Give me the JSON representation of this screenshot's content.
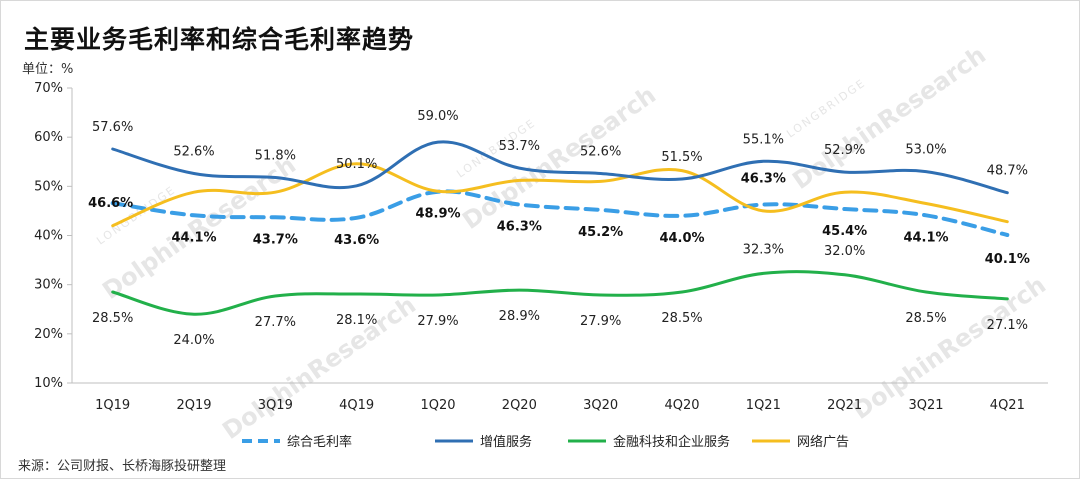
{
  "title": "主要业务毛利率和综合毛利率趋势",
  "unit": "单位：%",
  "source": "来源：公司财报、长桥海豚投研整理",
  "watermark": {
    "main": "DolphinResearch",
    "sub": "LONGBRIDGE"
  },
  "chart_data": {
    "type": "line",
    "categories": [
      "1Q19",
      "2Q19",
      "3Q19",
      "4Q19",
      "1Q20",
      "2Q20",
      "3Q20",
      "4Q20",
      "1Q21",
      "2Q21",
      "3Q21",
      "4Q21"
    ],
    "ylim": [
      10,
      70
    ],
    "yticks": [
      10,
      20,
      30,
      40,
      50,
      60,
      70
    ],
    "ytick_labels": [
      "10%",
      "20%",
      "30%",
      "40%",
      "50%",
      "60%",
      "70%"
    ],
    "legend_position": "bottom",
    "grid": false,
    "series": [
      {
        "name": "综合毛利率",
        "color": "#3a9ee6",
        "dashed": true,
        "label_bold": true,
        "values": [
          46.6,
          44.1,
          43.7,
          43.6,
          48.9,
          46.3,
          45.2,
          44.0,
          46.3,
          45.4,
          44.1,
          40.1
        ],
        "labels": [
          "46.6%",
          "44.1%",
          "43.7%",
          "43.6%",
          "48.9%",
          "46.3%",
          "45.2%",
          "44.0%",
          "46.3%",
          "45.4%",
          "44.1%",
          "40.1%"
        ]
      },
      {
        "name": "增值服务",
        "color": "#2f6fb3",
        "dashed": false,
        "label_bold": false,
        "values": [
          57.6,
          52.6,
          51.8,
          50.1,
          59.0,
          53.7,
          52.6,
          51.5,
          55.1,
          52.9,
          53.0,
          48.7
        ],
        "labels": [
          "57.6%",
          "52.6%",
          "51.8%",
          "50.1%",
          "59.0%",
          "53.7%",
          "52.6%",
          "51.5%",
          "55.1%",
          "52.9%",
          "53.0%",
          "48.7%"
        ]
      },
      {
        "name": "金融科技和企业服务",
        "color": "#22b04a",
        "dashed": false,
        "label_bold": false,
        "values": [
          28.5,
          24.0,
          27.7,
          28.1,
          27.9,
          28.9,
          27.9,
          28.5,
          32.3,
          32.0,
          28.5,
          27.1
        ],
        "labels": [
          "28.5%",
          "24.0%",
          "27.7%",
          "28.1%",
          "27.9%",
          "28.9%",
          "27.9%",
          "28.5%",
          "32.3%",
          "32.0%",
          "28.5%",
          "27.1%"
        ]
      },
      {
        "name": "网络广告",
        "color": "#f5be1f",
        "dashed": false,
        "label_bold": false,
        "values": [
          42.0,
          48.8,
          48.8,
          54.6,
          49.0,
          51.2,
          51.0,
          53.2,
          45.0,
          48.8,
          46.5,
          42.8
        ],
        "labels": []
      }
    ]
  }
}
